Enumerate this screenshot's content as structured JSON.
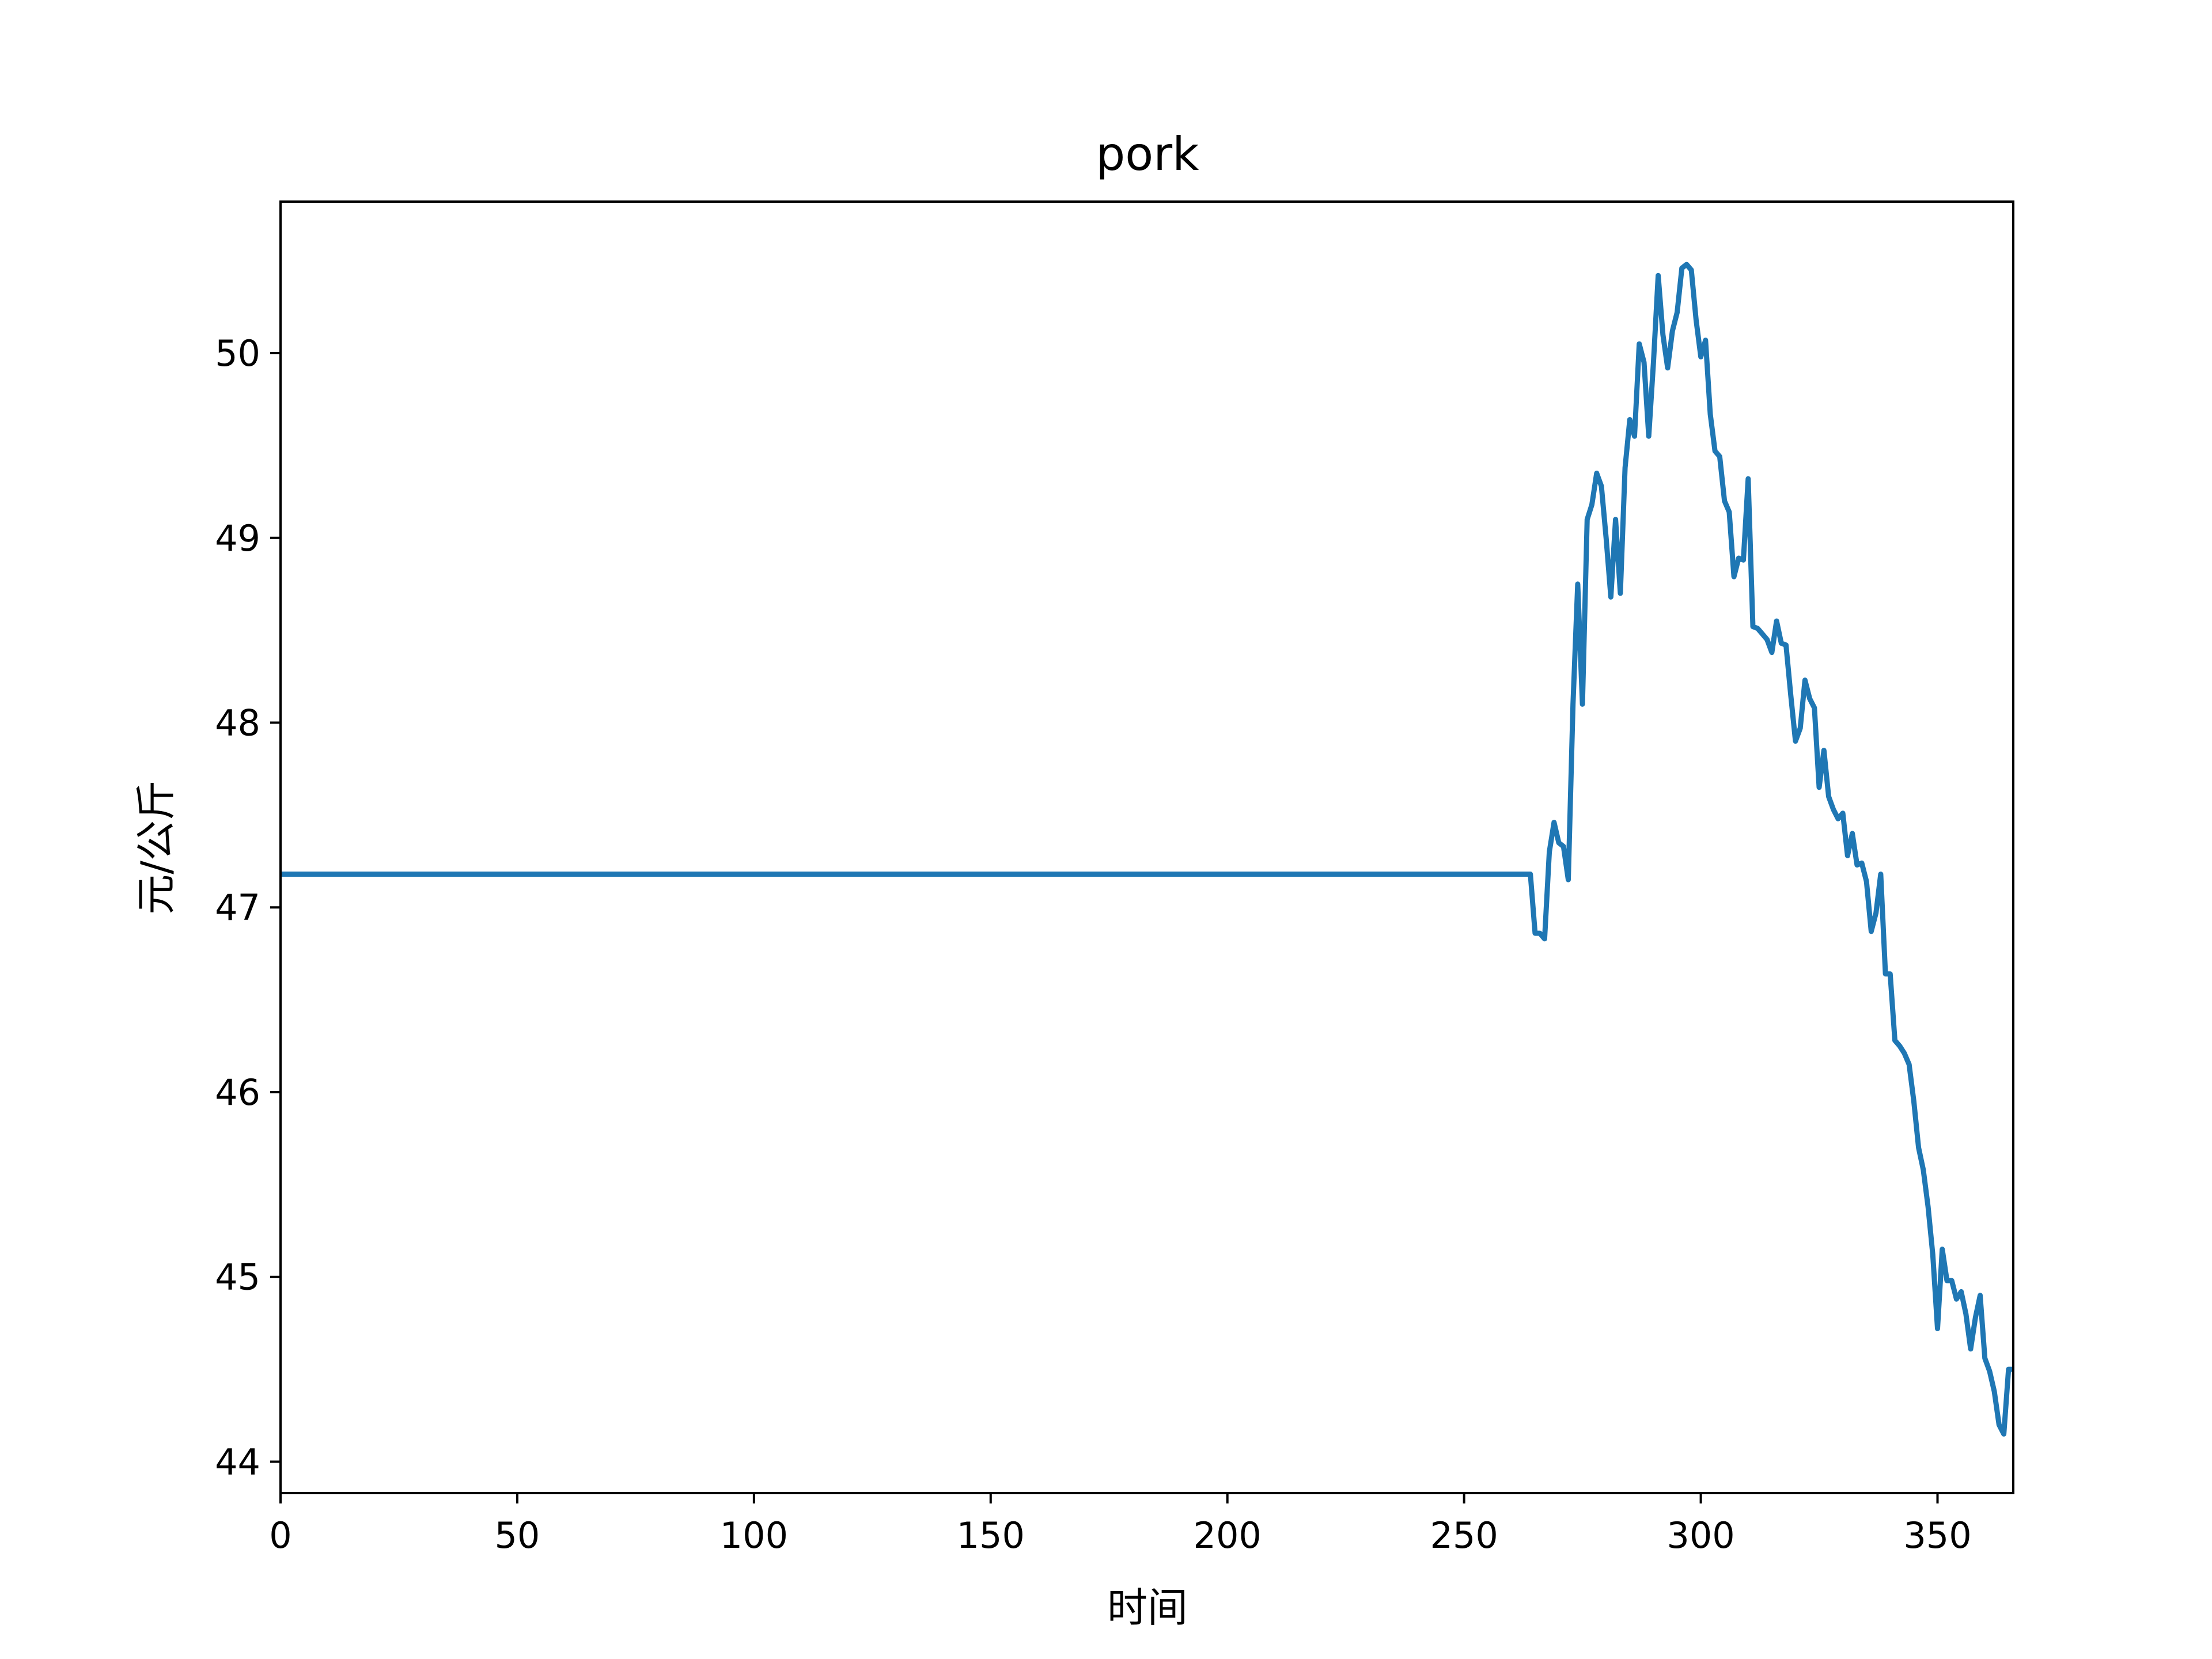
{
  "chart_data": {
    "type": "line",
    "title": "pork",
    "xlabel": "时间",
    "ylabel": "元/公斤",
    "xlim": [
      0,
      366
    ],
    "ylim": [
      43.83,
      50.82
    ],
    "xticks": [
      0,
      50,
      100,
      150,
      200,
      250,
      300,
      350
    ],
    "yticks": [
      44,
      45,
      46,
      47,
      48,
      49,
      50
    ],
    "grid": false,
    "legend": "none",
    "series": [
      {
        "color": "#1f77b4",
        "points": [
          [
            0,
            47.18
          ],
          [
            264,
            47.18
          ],
          [
            265,
            46.86
          ],
          [
            266,
            46.86
          ],
          [
            267,
            46.83
          ],
          [
            268,
            47.3
          ],
          [
            269,
            47.46
          ],
          [
            270,
            47.35
          ],
          [
            271,
            47.33
          ],
          [
            272,
            47.15
          ],
          [
            273,
            48.1
          ],
          [
            274,
            48.75
          ],
          [
            275,
            48.1
          ],
          [
            276,
            49.1
          ],
          [
            277,
            49.18
          ],
          [
            278,
            49.35
          ],
          [
            279,
            49.28
          ],
          [
            280,
            49.0
          ],
          [
            281,
            48.68
          ],
          [
            282,
            49.1
          ],
          [
            283,
            48.7
          ],
          [
            284,
            49.38
          ],
          [
            285,
            49.64
          ],
          [
            286,
            49.55
          ],
          [
            287,
            50.05
          ],
          [
            288,
            49.95
          ],
          [
            289,
            49.55
          ],
          [
            290,
            49.95
          ],
          [
            291,
            50.42
          ],
          [
            292,
            50.1
          ],
          [
            293,
            49.92
          ],
          [
            294,
            50.12
          ],
          [
            295,
            50.22
          ],
          [
            296,
            50.46
          ],
          [
            297,
            50.48
          ],
          [
            298,
            50.45
          ],
          [
            299,
            50.18
          ],
          [
            300,
            49.98
          ],
          [
            301,
            50.07
          ],
          [
            302,
            49.67
          ],
          [
            303,
            49.47
          ],
          [
            304,
            49.44
          ],
          [
            305,
            49.2
          ],
          [
            306,
            49.14
          ],
          [
            307,
            48.79
          ],
          [
            308,
            48.89
          ],
          [
            309,
            48.88
          ],
          [
            310,
            49.32
          ],
          [
            311,
            48.52
          ],
          [
            312,
            48.51
          ],
          [
            313,
            48.48
          ],
          [
            314,
            48.45
          ],
          [
            315,
            48.38
          ],
          [
            316,
            48.55
          ],
          [
            317,
            48.43
          ],
          [
            318,
            48.42
          ],
          [
            319,
            48.15
          ],
          [
            320,
            47.9
          ],
          [
            321,
            47.97
          ],
          [
            322,
            48.23
          ],
          [
            323,
            48.13
          ],
          [
            324,
            48.08
          ],
          [
            325,
            47.65
          ],
          [
            326,
            47.85
          ],
          [
            327,
            47.6
          ],
          [
            328,
            47.53
          ],
          [
            329,
            47.48
          ],
          [
            330,
            47.51
          ],
          [
            331,
            47.28
          ],
          [
            332,
            47.4
          ],
          [
            333,
            47.23
          ],
          [
            334,
            47.24
          ],
          [
            335,
            47.14
          ],
          [
            336,
            46.87
          ],
          [
            337,
            46.97
          ],
          [
            338,
            47.18
          ],
          [
            339,
            46.64
          ],
          [
            340,
            46.64
          ],
          [
            341,
            46.28
          ],
          [
            342,
            46.25
          ],
          [
            343,
            46.21
          ],
          [
            344,
            46.15
          ],
          [
            345,
            45.95
          ],
          [
            346,
            45.7
          ],
          [
            347,
            45.58
          ],
          [
            348,
            45.38
          ],
          [
            349,
            45.12
          ],
          [
            350,
            44.72
          ],
          [
            351,
            45.15
          ],
          [
            352,
            44.98
          ],
          [
            353,
            44.98
          ],
          [
            354,
            44.88
          ],
          [
            355,
            44.92
          ],
          [
            356,
            44.8
          ],
          [
            357,
            44.61
          ],
          [
            358,
            44.78
          ],
          [
            359,
            44.9
          ],
          [
            360,
            44.56
          ],
          [
            361,
            44.49
          ],
          [
            362,
            44.38
          ],
          [
            363,
            44.2
          ],
          [
            364,
            44.15
          ],
          [
            365,
            44.5
          ],
          [
            366,
            44.5
          ]
        ]
      }
    ]
  }
}
